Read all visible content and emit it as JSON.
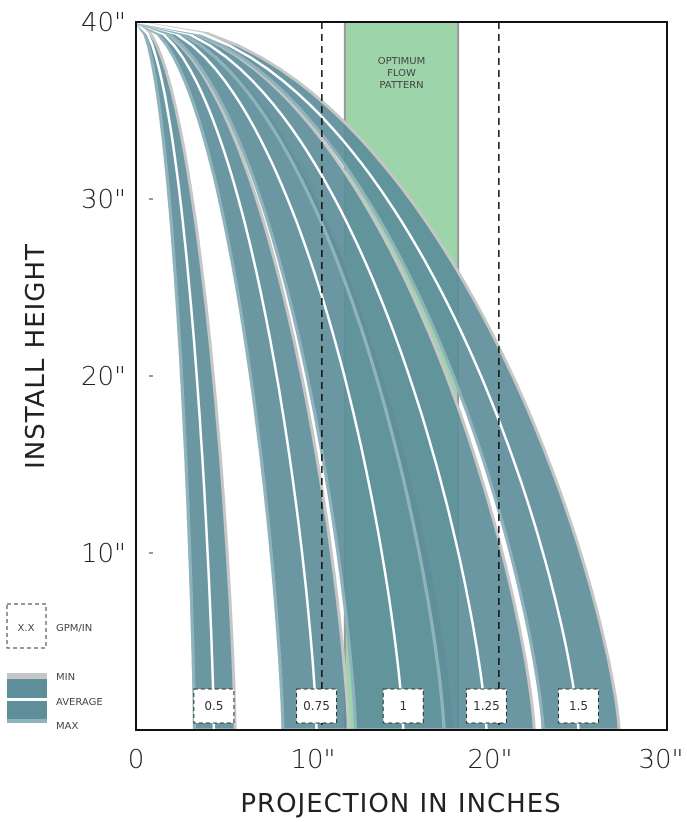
{
  "chart_data": {
    "type": "area",
    "xlabel": "PROJECTION IN INCHES",
    "ylabel": "INSTALL HEIGHT",
    "xlim": [
      0,
      30
    ],
    "ylim": [
      0,
      40
    ],
    "x_ticks": [
      "0",
      "10\"",
      "20\"",
      "30\""
    ],
    "y_ticks": [
      "10\"",
      "20\"",
      "30\"",
      "40\""
    ],
    "optimum_band": {
      "x_range": [
        11.8,
        18.2
      ],
      "label": "OPTIMUM\nFLOW\nPATTERN",
      "color": "#9dd4aa"
    },
    "reference_lines_x": [
      10.5,
      20.5
    ],
    "series": [
      {
        "name": "0.5",
        "min": 3.3,
        "average": 4.4,
        "max": 5.6
      },
      {
        "name": "0.75",
        "min": 8.3,
        "average": 10.2,
        "max": 12.0
      },
      {
        "name": "1",
        "min": 12.4,
        "average": 15.1,
        "max": 18.0
      },
      {
        "name": "1.25",
        "min": 17.4,
        "average": 19.8,
        "max": 22.5
      },
      {
        "name": "1.5",
        "min": 23.0,
        "average": 25.0,
        "max": 27.3
      }
    ],
    "source_height": 40,
    "band_color": "#5d8e9a",
    "edge_color": "#c6c6c6",
    "legend": {
      "box_text": "X.X",
      "box_caption": "GPM/IN",
      "items": [
        "MIN",
        "AVERAGE",
        "MAX"
      ],
      "placement": "bottom-left"
    }
  }
}
